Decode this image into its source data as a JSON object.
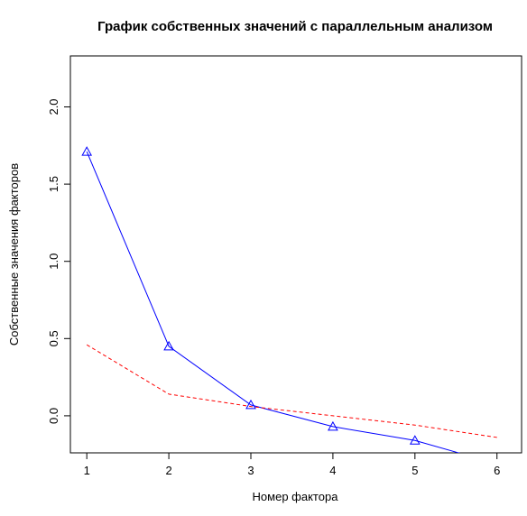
{
  "chart_data": {
    "type": "line",
    "title": "График собственных значений с параллельным анализом",
    "xlabel": "Номер фактора",
    "ylabel": "Собственные значения факторов",
    "xlim": [
      0.8,
      6.3
    ],
    "ylim": [
      -0.24,
      2.33
    ],
    "x_ticks": [
      1,
      2,
      3,
      4,
      5,
      6
    ],
    "y_ticks": [
      0.0,
      0.5,
      1.0,
      1.5,
      2.0
    ],
    "y_tick_labels": [
      "0.0",
      "0.5",
      "1.0",
      "1.5",
      "2.0"
    ],
    "grid": false,
    "series": [
      {
        "color": "#0000ff",
        "line_style": "solid",
        "marker": "triangle",
        "x": [
          1,
          2,
          3,
          4,
          5,
          6
        ],
        "values": [
          1.71,
          0.45,
          0.07,
          -0.07,
          -0.16,
          -0.31
        ]
      },
      {
        "color": "#ff0000",
        "line_style": "dashed",
        "marker": "none",
        "x": [
          1,
          2,
          3,
          4,
          5,
          6
        ],
        "values": [
          0.46,
          0.14,
          0.06,
          0.0,
          -0.06,
          -0.14
        ]
      }
    ]
  }
}
